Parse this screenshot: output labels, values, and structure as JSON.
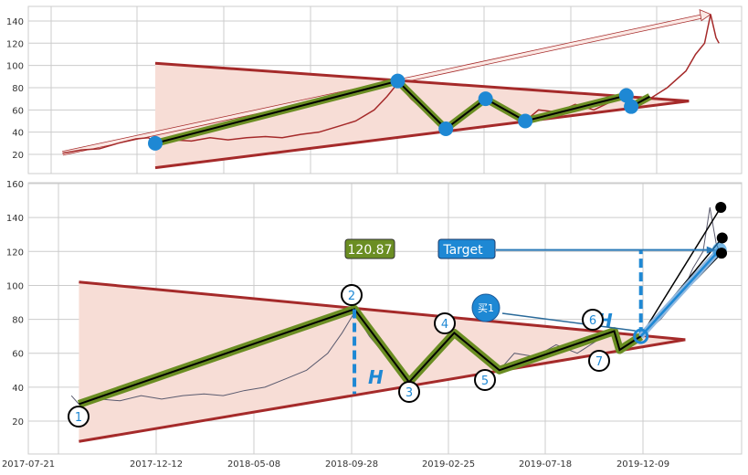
{
  "chart_data": [
    {
      "type": "line",
      "panel": "top",
      "ylim": [
        0,
        150
      ],
      "yticks": [
        20,
        40,
        60,
        80,
        100,
        120,
        140
      ],
      "xlim": [
        "2017-02-10",
        "2020-04-20"
      ],
      "grid": true,
      "colors": {
        "price": "#a52a2a",
        "triangle": "#a52a2a",
        "fill": "#f7ddd6",
        "zigzag": "#6b8e23",
        "points": "#1e88d4",
        "arrow": "#f2c8c0"
      },
      "price": [
        [
          "2017-03-20",
          21
        ],
        [
          "2017-04-20",
          24
        ],
        [
          "2017-05-20",
          25
        ],
        [
          "2017-06-20",
          30
        ],
        [
          "2017-07-20",
          34
        ],
        [
          "2017-08-10",
          35
        ],
        [
          "2017-08-21",
          30
        ],
        [
          "2017-09-20",
          33
        ],
        [
          "2017-10-20",
          32
        ],
        [
          "2017-11-20",
          35
        ],
        [
          "2017-12-20",
          33
        ],
        [
          "2018-01-20",
          35
        ],
        [
          "2018-02-20",
          36
        ],
        [
          "2018-03-20",
          35
        ],
        [
          "2018-04-20",
          38
        ],
        [
          "2018-05-20",
          40
        ],
        [
          "2018-06-20",
          45
        ],
        [
          "2018-07-20",
          50
        ],
        [
          "2018-08-20",
          60
        ],
        [
          "2018-09-10",
          72
        ],
        [
          "2018-09-28",
          84
        ],
        [
          "2018-10-20",
          70
        ],
        [
          "2018-11-20",
          55
        ],
        [
          "2018-12-20",
          43
        ],
        [
          "2019-01-20",
          55
        ],
        [
          "2019-02-21",
          70
        ],
        [
          "2019-03-20",
          62
        ],
        [
          "2019-04-28",
          50
        ],
        [
          "2019-05-20",
          60
        ],
        [
          "2019-06-20",
          58
        ],
        [
          "2019-07-20",
          65
        ],
        [
          "2019-08-20",
          60
        ],
        [
          "2019-09-20",
          68
        ],
        [
          "2019-10-13",
          72
        ],
        [
          "2019-10-21",
          62
        ],
        [
          "2019-11-21",
          70
        ],
        [
          "2019-12-20",
          80
        ],
        [
          "2020-01-20",
          95
        ],
        [
          "2020-02-05",
          110
        ],
        [
          "2020-02-20",
          120
        ],
        [
          "2020-03-01",
          146
        ],
        [
          "2020-03-10",
          125
        ],
        [
          "2020-03-15",
          120
        ]
      ],
      "zigzag": [
        [
          "2017-08-21",
          30
        ],
        [
          "2018-09-28",
          86
        ],
        [
          "2018-12-17",
          43
        ],
        [
          "2019-02-21",
          70
        ],
        [
          "2019-04-28",
          50
        ],
        [
          "2019-10-13",
          73
        ],
        [
          "2019-10-21",
          63
        ],
        [
          "2019-11-21",
          72
        ]
      ],
      "triangle_upper": [
        [
          "2017-08-21",
          102
        ],
        [
          "2020-01-25",
          68
        ]
      ],
      "triangle_lower": [
        [
          "2017-08-21",
          8
        ],
        [
          "2020-01-25",
          68
        ]
      ],
      "trend_arrow": [
        [
          "2017-03-20",
          21
        ],
        [
          "2020-03-01",
          146
        ]
      ]
    },
    {
      "type": "line",
      "panel": "bottom",
      "ylim": [
        0,
        160
      ],
      "yticks": [
        20,
        40,
        60,
        80,
        100,
        120,
        140,
        160
      ],
      "xticks": [
        "2017-07-21",
        "2017-12-12",
        "2018-05-08",
        "2018-09-28",
        "2019-02-25",
        "2019-07-18",
        "2019-12-09"
      ],
      "grid": true,
      "colors": {
        "price": "#5a5a6e",
        "triangle": "#a52a2a",
        "fill": "#f7ddd6",
        "zigzag": "#6b8e23",
        "accent": "#1e88d4",
        "value_box": "#6b8e23"
      },
      "pattern_points": [
        {
          "label": "1",
          "date": "2017-08-21",
          "value": 30
        },
        {
          "label": "2",
          "date": "2018-09-28",
          "value": 86
        },
        {
          "label": "3",
          "date": "2018-12-17",
          "value": 43
        },
        {
          "label": "4",
          "date": "2019-02-21",
          "value": 72
        },
        {
          "label": "5",
          "date": "2019-04-28",
          "value": 50
        },
        {
          "label": "6",
          "date": "2019-10-13",
          "value": 73
        },
        {
          "label": "7",
          "date": "2019-10-21",
          "value": 62
        }
      ],
      "breakout": {
        "date": "2019-11-21",
        "value": 70
      },
      "target": {
        "label": "Target",
        "value": 120.87,
        "value_label": "120.87",
        "date": "2020-03-15"
      },
      "buy_label": "买1",
      "height_label": "H",
      "end_points": [
        [
          "2020-03-17",
          146
        ],
        [
          "2020-03-19",
          128
        ],
        [
          "2020-03-18",
          119
        ]
      ]
    }
  ]
}
